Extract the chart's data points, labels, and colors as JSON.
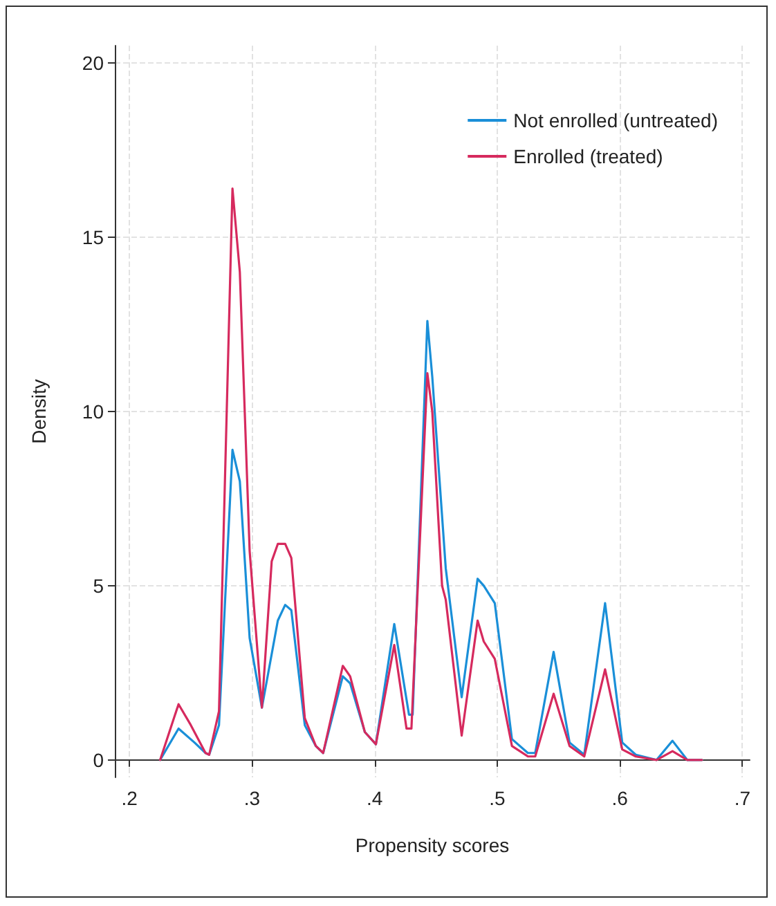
{
  "chart_data": {
    "type": "line",
    "xlabel": "Propensity scores",
    "ylabel": "Density",
    "xlim": [
      0.188,
      0.706
    ],
    "ylim": [
      -0.5,
      20.5
    ],
    "xticks": [
      {
        "value": 0.2,
        "label": ".2"
      },
      {
        "value": 0.3,
        "label": ".3"
      },
      {
        "value": 0.4,
        "label": ".4"
      },
      {
        "value": 0.5,
        "label": ".5"
      },
      {
        "value": 0.6,
        "label": ".6"
      },
      {
        "value": 0.7,
        "label": ".7"
      }
    ],
    "yticks": [
      0,
      5,
      10,
      15,
      20
    ],
    "grid": true,
    "legend": "top right",
    "marker": "none",
    "line_style": "solid",
    "series": [
      {
        "name": "Not enrolled (untreated)",
        "color": "#1a8fd8",
        "x": [
          0.225,
          0.24,
          0.253,
          0.262,
          0.265,
          0.273,
          0.284,
          0.29,
          0.298,
          0.308,
          0.321,
          0.327,
          0.332,
          0.343,
          0.352,
          0.358,
          0.374,
          0.38,
          0.392,
          0.401,
          0.416,
          0.428,
          0.431,
          0.443,
          0.447,
          0.458,
          0.471,
          0.484,
          0.489,
          0.498,
          0.512,
          0.525,
          0.531,
          0.546,
          0.559,
          0.571,
          0.588,
          0.602,
          0.613,
          0.63,
          0.643,
          0.655,
          0.667
        ],
        "values": [
          0,
          0.9,
          0.5,
          0.2,
          0.15,
          1.0,
          8.9,
          8.0,
          3.5,
          1.5,
          4.0,
          4.45,
          4.3,
          1.0,
          0.4,
          0.2,
          2.4,
          2.2,
          0.8,
          0.45,
          3.9,
          1.3,
          1.3,
          12.6,
          11.0,
          5.5,
          1.8,
          5.2,
          5.0,
          4.5,
          0.6,
          0.2,
          0.2,
          3.1,
          0.5,
          0.15,
          4.5,
          0.5,
          0.15,
          0,
          0.55,
          0,
          0
        ]
      },
      {
        "name": "Enrolled (treated)",
        "color": "#d62a5e",
        "x": [
          0.225,
          0.24,
          0.25,
          0.262,
          0.265,
          0.273,
          0.284,
          0.29,
          0.298,
          0.308,
          0.316,
          0.321,
          0.327,
          0.332,
          0.343,
          0.352,
          0.358,
          0.374,
          0.38,
          0.392,
          0.401,
          0.416,
          0.426,
          0.43,
          0.443,
          0.447,
          0.455,
          0.458,
          0.471,
          0.484,
          0.489,
          0.498,
          0.512,
          0.525,
          0.531,
          0.546,
          0.559,
          0.571,
          0.588,
          0.602,
          0.613,
          0.63,
          0.643,
          0.655,
          0.667
        ],
        "values": [
          0,
          1.6,
          1.0,
          0.2,
          0.15,
          1.4,
          16.4,
          14.0,
          6.0,
          1.5,
          5.7,
          6.2,
          6.2,
          5.8,
          1.2,
          0.4,
          0.2,
          2.7,
          2.4,
          0.8,
          0.45,
          3.3,
          0.9,
          0.9,
          11.1,
          10.0,
          5.0,
          4.6,
          0.7,
          4.0,
          3.4,
          2.9,
          0.4,
          0.1,
          0.1,
          1.9,
          0.4,
          0.1,
          2.6,
          0.3,
          0.1,
          0,
          0.25,
          0,
          0
        ]
      }
    ]
  }
}
